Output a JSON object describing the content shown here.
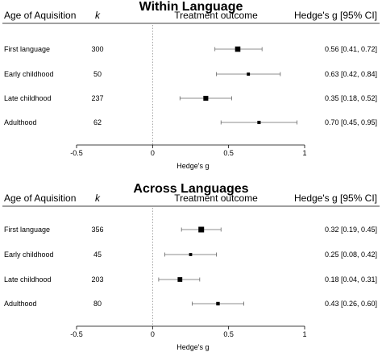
{
  "chart_data": [
    {
      "type": "forest",
      "title": "Within Language",
      "header": {
        "group_label": "Age of Aquisition",
        "k_label": "k",
        "outcome_label": "Treatment outcome",
        "effect_label": "Hedge's g [95% CI]"
      },
      "xlabel": "Hedge's g",
      "xlim": [
        -0.5,
        1
      ],
      "xticks": [
        "-0.5",
        "0",
        "0.5",
        "1"
      ],
      "reference_line": 0,
      "rows": [
        {
          "label": "First language",
          "k": "300",
          "g": 0.56,
          "lo": 0.41,
          "hi": 0.72,
          "ci_text": "0.56 [0.41, 0.72]"
        },
        {
          "label": "Early childhood",
          "k": "50",
          "g": 0.63,
          "lo": 0.42,
          "hi": 0.84,
          "ci_text": "0.63 [0.42, 0.84]"
        },
        {
          "label": "Late childhood",
          "k": "237",
          "g": 0.35,
          "lo": 0.18,
          "hi": 0.52,
          "ci_text": "0.35 [0.18, 0.52]"
        },
        {
          "label": "Adulthood",
          "k": "62",
          "g": 0.7,
          "lo": 0.45,
          "hi": 0.95,
          "ci_text": "0.70 [0.45, 0.95]"
        }
      ]
    },
    {
      "type": "forest",
      "title": "Across Languages",
      "header": {
        "group_label": "Age of Aquisition",
        "k_label": "k",
        "outcome_label": "Treatment outcome",
        "effect_label": "Hedge's g [95% CI]"
      },
      "xlabel": "Hedge's g",
      "xlim": [
        -0.5,
        1
      ],
      "xticks": [
        "-0.5",
        "0",
        "0.5",
        "1"
      ],
      "reference_line": 0,
      "rows": [
        {
          "label": "First language",
          "k": "356",
          "g": 0.32,
          "lo": 0.19,
          "hi": 0.45,
          "ci_text": "0.32 [0.19, 0.45]"
        },
        {
          "label": "Early childhood",
          "k": "45",
          "g": 0.25,
          "lo": 0.08,
          "hi": 0.42,
          "ci_text": "0.25 [0.08, 0.42]"
        },
        {
          "label": "Late childhood",
          "k": "203",
          "g": 0.18,
          "lo": 0.04,
          "hi": 0.31,
          "ci_text": "0.18 [0.04, 0.31]"
        },
        {
          "label": "Adulthood",
          "k": "80",
          "g": 0.43,
          "lo": 0.26,
          "hi": 0.6,
          "ci_text": "0.43 [0.26, 0.60]"
        }
      ]
    }
  ]
}
